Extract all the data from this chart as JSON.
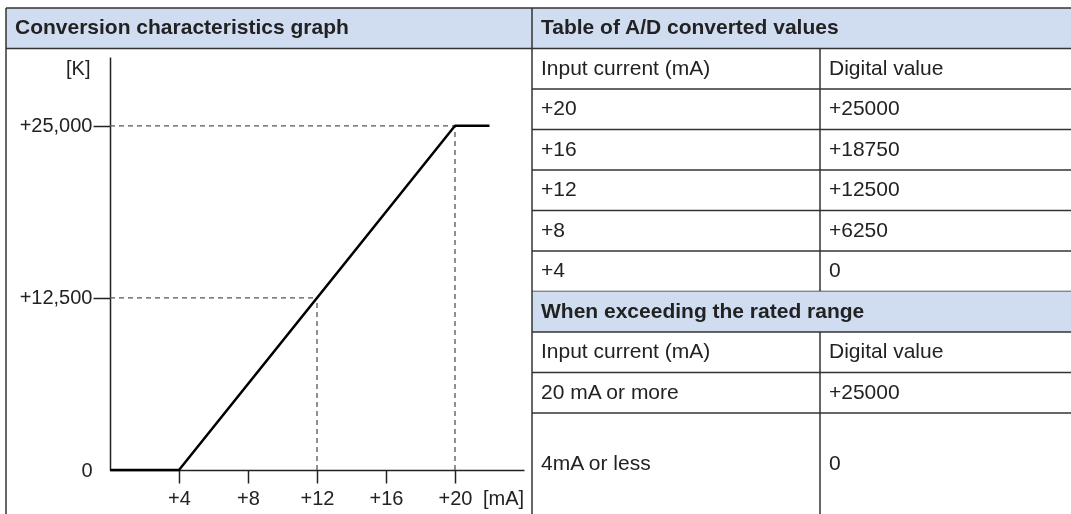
{
  "chart_data": {
    "type": "line",
    "title": "Conversion characteristics graph",
    "xlabel": "[mA]",
    "ylabel": "[K]",
    "x": [
      0,
      4,
      20,
      22
    ],
    "series": [
      {
        "color": "#000000",
        "values": [
          0,
          0,
          25000,
          25000
        ]
      }
    ],
    "xlim": [
      0,
      24
    ],
    "ylim": [
      0,
      30000
    ],
    "xticks": [
      {
        "value": 4,
        "label": "+4"
      },
      {
        "value": 8,
        "label": "+8"
      },
      {
        "value": 12,
        "label": "+12"
      },
      {
        "value": 16,
        "label": "+16"
      },
      {
        "value": 20,
        "label": "+20"
      }
    ],
    "yticks": [
      0,
      {
        "value": 12500,
        "label": "+12,500"
      },
      {
        "value": 25000,
        "label": "+25,000"
      }
    ],
    "ref_lines": [
      {
        "axis": "y",
        "value": 25000,
        "color": "#555555",
        "line_style": "dashed"
      },
      {
        "axis": "x",
        "value": 20,
        "color": "#555555",
        "line_style": "dashed"
      },
      {
        "axis": "y",
        "value": 12500,
        "color": "#555555",
        "line_style": "dashed"
      },
      {
        "axis": "x",
        "value": 12,
        "color": "#555555",
        "line_style": "dashed"
      }
    ],
    "grid": false,
    "line_style": "solid",
    "annotations": [
      "Table of A/D converted values",
      "Input current (mA)",
      "Digital value",
      "+20",
      "+25000",
      "+16",
      "+18750",
      "+12",
      "+12500",
      "+8",
      "+6250",
      "+4",
      "0",
      "When exceeding the rated range",
      "Input current (mA)",
      "Digital value",
      "20 mA or more",
      "+25000",
      "4mA or less",
      "0"
    ]
  }
}
